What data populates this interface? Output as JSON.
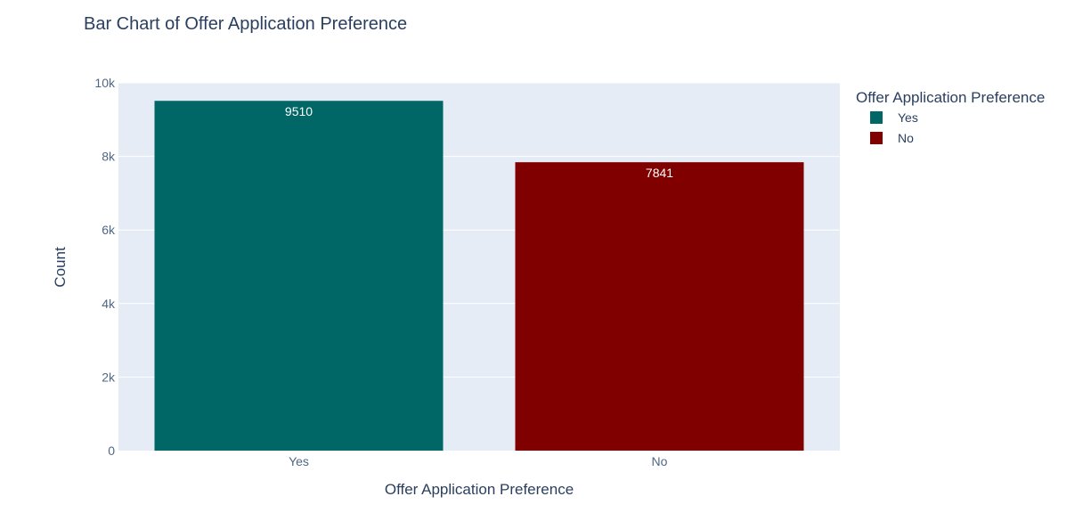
{
  "chart_data": {
    "type": "bar",
    "title": "Bar Chart of Offer Application Preference",
    "xlabel": "Offer Application Preference",
    "ylabel": "Count",
    "categories": [
      "Yes",
      "No"
    ],
    "values": [
      9510,
      7841
    ],
    "data_labels": [
      "9510",
      "7841"
    ],
    "colors": [
      "#006666",
      "#800000"
    ],
    "ylim": [
      0,
      10000
    ],
    "yticks": [
      0,
      2000,
      4000,
      6000,
      8000,
      10000
    ],
    "ytick_labels": [
      "0",
      "2k",
      "4k",
      "6k",
      "8k",
      "10k"
    ],
    "grid": true,
    "plot_background": "#e5ecf6",
    "legend": {
      "title": "Offer Application Preference",
      "placement": "top-right",
      "entries": [
        "Yes",
        "No"
      ]
    }
  }
}
